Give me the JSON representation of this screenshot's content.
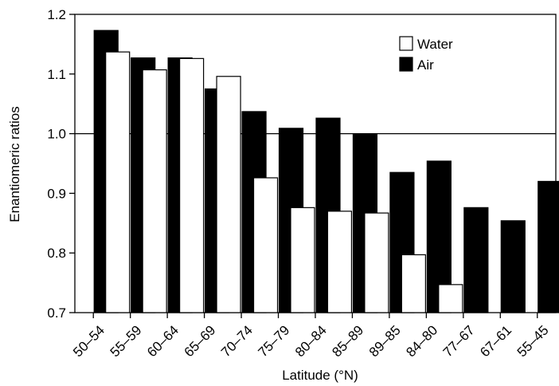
{
  "chart_data": {
    "type": "bar",
    "title": "",
    "xlabel": "Latitude (°N)",
    "ylabel": "Enantiomeric ratios",
    "ylim": [
      0.7,
      1.2
    ],
    "yticks": [
      "0.7",
      "0.8",
      "0.9",
      "1.0",
      "1.1",
      "1.2"
    ],
    "reference_line": 1.0,
    "categories": [
      "50–54",
      "55–59",
      "60–64",
      "65–69",
      "70–74",
      "75–79",
      "80–84",
      "85–89",
      "89–85",
      "84–80",
      "77–67",
      "67–61",
      "55–45"
    ],
    "series": [
      {
        "name": "Water",
        "color": "#ffffff",
        "values": [
          null,
          1.137,
          1.107,
          1.126,
          1.096,
          0.926,
          0.876,
          0.87,
          0.867,
          0.797,
          0.747,
          null,
          null
        ]
      },
      {
        "name": "Air",
        "color": "#000000",
        "values": [
          1.173,
          1.127,
          1.127,
          1.075,
          1.037,
          1.009,
          1.026,
          1.0,
          0.935,
          0.954,
          0.876,
          0.854,
          0.92
        ]
      }
    ],
    "legend_position": "top-right",
    "grid": false
  }
}
